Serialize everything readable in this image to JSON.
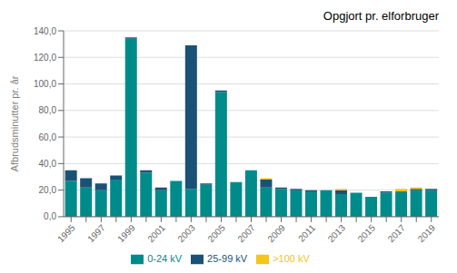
{
  "chart_data": {
    "type": "bar",
    "title": "Opgjort pr. elforbruger",
    "y_label": "Afbrudsminutter pr. år",
    "categories": [
      "1995",
      null,
      "1997",
      null,
      "1999",
      null,
      "2001",
      null,
      "2003",
      null,
      "2005",
      null,
      "2007",
      null,
      "2009",
      null,
      "2011",
      null,
      "2013",
      null,
      "2015",
      null,
      "2017",
      null,
      "2019"
    ],
    "series": [
      {
        "name": "0-24 kV",
        "color": "#008b8b",
        "values": [
          27,
          22,
          20,
          28,
          134,
          33,
          20,
          27,
          21,
          24,
          94,
          26,
          35,
          22,
          21,
          20,
          19,
          20,
          17,
          18,
          15,
          18,
          19,
          20,
          20
        ]
      },
      {
        "name": "25-99 kV",
        "color": "#1a5276",
        "values": [
          8,
          7,
          5,
          3,
          1,
          2,
          2,
          0,
          108,
          1,
          1,
          0,
          0,
          6,
          1,
          1,
          1,
          0,
          3,
          0,
          0,
          1,
          0,
          1,
          1
        ]
      },
      {
        "name": ">100 kV",
        "color": "#f5c518",
        "values": [
          0,
          0,
          0,
          0,
          0,
          0,
          0,
          0,
          0,
          0,
          0,
          0,
          0,
          1,
          0,
          0,
          0,
          0,
          1,
          0,
          0,
          0,
          2,
          1,
          0
        ]
      }
    ],
    "stacked": true,
    "ylim": [
      0,
      140
    ],
    "yticks": [
      {
        "value": 0,
        "label": "0,0"
      },
      {
        "value": 20,
        "label": "20,0"
      },
      {
        "value": 40,
        "label": "40,0"
      },
      {
        "value": 60,
        "label": "60,0"
      },
      {
        "value": 80,
        "label": "80,0"
      },
      {
        "value": 100,
        "label": "100,0"
      },
      {
        "value": 120,
        "label": "120,0"
      },
      {
        "value": 140,
        "label": "140,0"
      }
    ],
    "grid": true,
    "legend": "bottom"
  }
}
